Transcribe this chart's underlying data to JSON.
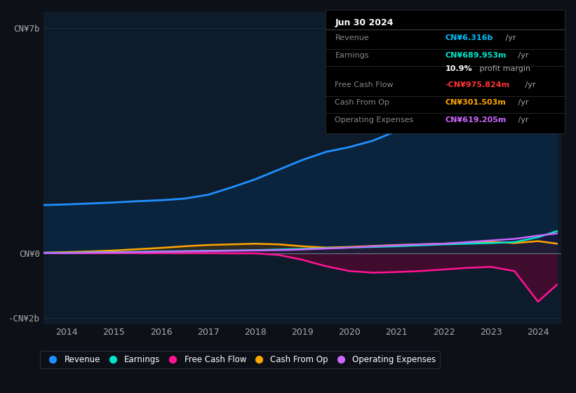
{
  "bg_color": "#0d1117",
  "plot_bg_color": "#0d1b2a",
  "title_box": {
    "date": "Jun 30 2024",
    "rows": [
      {
        "label": "Revenue",
        "value": "CN¥6.316b",
        "unit": " /yr",
        "color": "#00bfff"
      },
      {
        "label": "Earnings",
        "value": "CN¥689.953m",
        "unit": " /yr",
        "color": "#00e5c8"
      },
      {
        "label": "",
        "value": "10.9%",
        "unit": " profit margin",
        "color": "#ffffff"
      },
      {
        "label": "Free Cash Flow",
        "value": "-CN¥975.824m",
        "unit": " /yr",
        "color": "#ff3333"
      },
      {
        "label": "Cash From Op",
        "value": "CN¥301.503m",
        "unit": " /yr",
        "color": "#ffa500"
      },
      {
        "label": "Operating Expenses",
        "value": "CN¥619.205m",
        "unit": " /yr",
        "color": "#cc66ff"
      }
    ]
  },
  "years": [
    2013.5,
    2014.0,
    2014.5,
    2015.0,
    2015.5,
    2016.0,
    2016.5,
    2017.0,
    2017.5,
    2018.0,
    2018.5,
    2019.0,
    2019.5,
    2020.0,
    2020.5,
    2021.0,
    2021.5,
    2022.0,
    2022.5,
    2023.0,
    2023.5,
    2024.0,
    2024.4
  ],
  "revenue": [
    1.5,
    1.52,
    1.55,
    1.58,
    1.62,
    1.65,
    1.7,
    1.82,
    2.05,
    2.3,
    2.6,
    2.9,
    3.15,
    3.3,
    3.5,
    3.8,
    4.5,
    5.2,
    5.0,
    4.6,
    4.8,
    6.0,
    6.316
  ],
  "earnings": [
    0.02,
    0.02,
    0.03,
    0.04,
    0.05,
    0.06,
    0.07,
    0.08,
    0.09,
    0.1,
    0.12,
    0.14,
    0.16,
    0.18,
    0.2,
    0.22,
    0.25,
    0.28,
    0.3,
    0.32,
    0.35,
    0.5,
    0.69
  ],
  "free_cash_flow": [
    0.01,
    0.01,
    0.01,
    0.01,
    0.01,
    0.01,
    0.01,
    0.01,
    0.0,
    0.0,
    -0.05,
    -0.2,
    -0.4,
    -0.55,
    -0.6,
    -0.58,
    -0.55,
    -0.5,
    -0.45,
    -0.42,
    -0.55,
    -1.5,
    -0.976
  ],
  "cash_from_op": [
    0.02,
    0.04,
    0.06,
    0.09,
    0.13,
    0.17,
    0.22,
    0.26,
    0.28,
    0.3,
    0.28,
    0.22,
    0.18,
    0.2,
    0.23,
    0.26,
    0.28,
    0.3,
    0.33,
    0.36,
    0.32,
    0.38,
    0.302
  ],
  "operating_expenses": [
    0.01,
    0.01,
    0.02,
    0.03,
    0.04,
    0.05,
    0.06,
    0.07,
    0.08,
    0.09,
    0.1,
    0.12,
    0.15,
    0.18,
    0.22,
    0.25,
    0.28,
    0.3,
    0.35,
    0.4,
    0.45,
    0.55,
    0.619
  ],
  "ylim": [
    -2.2,
    7.5
  ],
  "yticks": [
    -2.0,
    0.0,
    7.0
  ],
  "ytick_labels": [
    "-CN¥2b",
    "CN¥0",
    "CN¥7b"
  ],
  "xticks": [
    2014,
    2015,
    2016,
    2017,
    2018,
    2019,
    2020,
    2021,
    2022,
    2023,
    2024
  ],
  "legend": [
    {
      "label": "Revenue",
      "color": "#1e90ff"
    },
    {
      "label": "Earnings",
      "color": "#00e5c8"
    },
    {
      "label": "Free Cash Flow",
      "color": "#ff1493"
    },
    {
      "label": "Cash From Op",
      "color": "#ffa500"
    },
    {
      "label": "Operating Expenses",
      "color": "#cc66ff"
    }
  ],
  "revenue_line_color": "#1e90ff",
  "revenue_fill_color": "#0a2a4a",
  "earnings_line_color": "#00e5c8",
  "earnings_fill_color": "#003830",
  "fcf_line_color": "#ff1493",
  "fcf_fill_color": "#6b0030",
  "cfo_line_color": "#ffa500",
  "cfo_fill_color": "#5c3200",
  "opex_line_color": "#cc66ff",
  "opex_fill_color": "#2d0050"
}
